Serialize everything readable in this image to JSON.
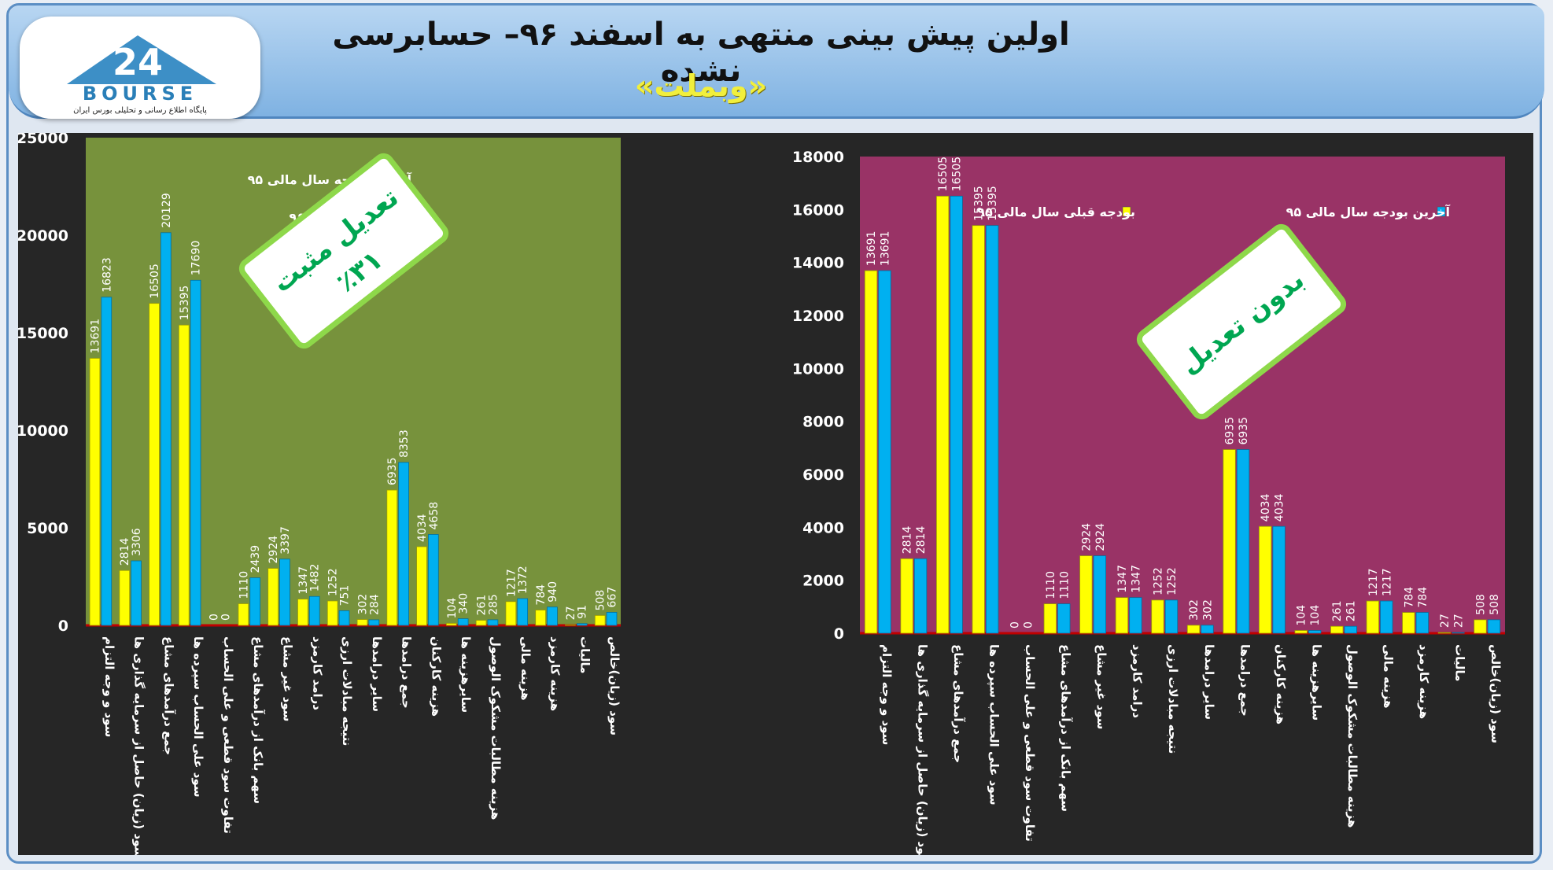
{
  "header": {
    "title": "اولین پیش بینی منتهی به اسفند ۹۶– حسابرسی نشده",
    "subtitle": "«وبملت»",
    "logo_word": "BOURSE",
    "logo_number": "24",
    "logo_tagline": "پایگاه اطلاع رسانی و تحلیلی بورس ایران"
  },
  "chart_data": [
    {
      "type": "bar",
      "ylim": [
        0,
        25000
      ],
      "yticks": [
        0,
        5000,
        10000,
        15000,
        20000,
        25000
      ],
      "plot_bg": "#77923c",
      "legend_position": "top-right",
      "callout": {
        "line1": "تعدیل مثبت",
        "line2": "٪۳۱"
      },
      "categories": [
        "سود و وجه التزام",
        "سود (زیان) حاصل از سرمایه گذاری ها",
        "جمع درآمدهای مشاع",
        "سود علی الحساب سپرده ها",
        "تفاوت سود قطعی و علی الحساب",
        "سهم بانک از درآمدهای مشاع",
        "سود غیر مشاع",
        "درامد کارمزد",
        "نتیجه مبادلات ارزی",
        "سایر درامدها",
        "جمع درامدها",
        "هزینه کارکنان",
        "سایرهزینه ها",
        "هزینه مطالبات مشکوک الوصول",
        "هزینه مالی",
        "هزینه کارمزد",
        "مالیات",
        "سود (زیان)خالص"
      ],
      "series": [
        {
          "name": "آخرین بودجه سال مالی ۹۵",
          "color": "#ffff00",
          "values": [
            13691,
            2814,
            16505,
            15395,
            0,
            1110,
            2924,
            1347,
            1252,
            302,
            6935,
            4034,
            104,
            261,
            1217,
            784,
            27,
            508
          ]
        },
        {
          "name": "بودجه سال مالی ۹۶",
          "color": "#00b0f0",
          "values": [
            16823,
            3306,
            20129,
            17690,
            0,
            2439,
            3397,
            1482,
            751,
            284,
            8353,
            4658,
            340,
            285,
            1372,
            940,
            91,
            667
          ]
        }
      ]
    },
    {
      "type": "bar",
      "ylim": [
        0,
        18000
      ],
      "yticks": [
        0,
        2000,
        4000,
        6000,
        8000,
        10000,
        12000,
        14000,
        16000,
        18000
      ],
      "plot_bg": "#993366",
      "legend_position": "top-right",
      "callout": {
        "line1": "بدون تعدیل",
        "line2": ""
      },
      "categories": [
        "سود و وجه التزام",
        "سود (زیان) حاصل از سرمایه گذاری ها",
        "جمع درآمدهای مشاع",
        "سود علی الحساب سپرده ها",
        "تفاوت سود قطعی و علی الحساب",
        "سهم بانک از درآمدهای مشاع",
        "سود غیر مشاع",
        "درامد کارمزد",
        "نتیجه مبادلات ارزی",
        "سایر درامدها",
        "جمع درامدها",
        "هزینه کارکنان",
        "سایرهزینه ها",
        "هزینه مطالبات مشکوک الوصول",
        "هزینه مالی",
        "هزینه کارمزد",
        "مالیات",
        "سود (زیان)خالص"
      ],
      "series": [
        {
          "name": "بودجه قبلی سال مالی ۹۵",
          "color": "#ffff00",
          "values": [
            13691,
            2814,
            16505,
            15395,
            0,
            1110,
            2924,
            1347,
            1252,
            302,
            6935,
            4034,
            104,
            261,
            1217,
            784,
            27,
            508
          ]
        },
        {
          "name": "آخرین بودجه سال مالی ۹۵",
          "color": "#00b0f0",
          "values": [
            13691,
            2814,
            16505,
            15395,
            0,
            1110,
            2924,
            1347,
            1252,
            302,
            6935,
            4034,
            104,
            261,
            1217,
            784,
            27,
            508
          ]
        }
      ]
    }
  ]
}
